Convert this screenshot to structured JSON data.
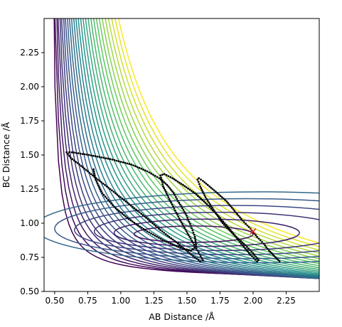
{
  "chart_data": {
    "type": "contour",
    "title": "",
    "xlabel": "AB Distance /Å",
    "ylabel": "BC Distance /Å",
    "xlim": [
      0.42,
      2.5
    ],
    "ylim": [
      0.5,
      2.5
    ],
    "xticks": [
      "0.50",
      "0.75",
      "1.00",
      "1.25",
      "1.50",
      "1.75",
      "2.00",
      "2.25"
    ],
    "yticks": [
      "0.50",
      "0.75",
      "1.00",
      "1.25",
      "1.50",
      "1.75",
      "2.00",
      "2.25"
    ],
    "xtick_values": [
      0.5,
      0.75,
      1.0,
      1.25,
      1.5,
      1.75,
      2.0,
      2.25
    ],
    "ytick_values": [
      0.5,
      0.75,
      1.0,
      1.25,
      1.5,
      1.75,
      2.0,
      2.25
    ],
    "colormap": [
      "#440154",
      "#3b528b",
      "#21918c",
      "#5ec962",
      "#fde725"
    ],
    "contour_levels": 28,
    "trajectory": {
      "color": "#000000",
      "points": [
        [
          2.2,
          0.72
        ],
        [
          2.16,
          0.76
        ],
        [
          2.12,
          0.8
        ],
        [
          2.08,
          0.85
        ],
        [
          2.03,
          0.9
        ],
        [
          1.98,
          0.96
        ],
        [
          1.92,
          1.02
        ],
        [
          1.86,
          1.09
        ],
        [
          1.8,
          1.16
        ],
        [
          1.73,
          1.22
        ],
        [
          1.67,
          1.27
        ],
        [
          1.62,
          1.31
        ],
        [
          1.59,
          1.33
        ],
        [
          1.58,
          1.32
        ],
        [
          1.6,
          1.27
        ],
        [
          1.64,
          1.19
        ],
        [
          1.7,
          1.1
        ],
        [
          1.77,
          1.0
        ],
        [
          1.85,
          0.92
        ],
        [
          1.93,
          0.85
        ],
        [
          2.0,
          0.78
        ],
        [
          2.04,
          0.73
        ],
        [
          2.03,
          0.72
        ],
        [
          1.98,
          0.77
        ],
        [
          1.91,
          0.85
        ],
        [
          1.83,
          0.95
        ],
        [
          1.74,
          1.05
        ],
        [
          1.65,
          1.14
        ],
        [
          1.56,
          1.22
        ],
        [
          1.47,
          1.28
        ],
        [
          1.39,
          1.33
        ],
        [
          1.33,
          1.36
        ],
        [
          1.3,
          1.35
        ],
        [
          1.32,
          1.27
        ],
        [
          1.38,
          1.15
        ],
        [
          1.45,
          1.02
        ],
        [
          1.52,
          0.9
        ],
        [
          1.58,
          0.8
        ],
        [
          1.62,
          0.73
        ],
        [
          1.6,
          0.72
        ],
        [
          1.52,
          0.78
        ],
        [
          1.42,
          0.86
        ],
        [
          1.3,
          0.95
        ],
        [
          1.18,
          1.05
        ],
        [
          1.05,
          1.15
        ],
        [
          0.92,
          1.25
        ],
        [
          0.8,
          1.34
        ],
        [
          0.7,
          1.42
        ],
        [
          0.62,
          1.48
        ],
        [
          0.59,
          1.52
        ],
        [
          0.63,
          1.52
        ],
        [
          0.76,
          1.5
        ],
        [
          0.92,
          1.47
        ],
        [
          1.08,
          1.43
        ],
        [
          1.2,
          1.38
        ],
        [
          1.29,
          1.33
        ],
        [
          1.35,
          1.28
        ],
        [
          1.4,
          1.22
        ],
        [
          1.44,
          1.15
        ],
        [
          1.49,
          1.07
        ],
        [
          1.53,
          0.98
        ],
        [
          1.56,
          0.9
        ],
        [
          1.57,
          0.83
        ],
        [
          1.53,
          0.8
        ],
        [
          1.45,
          0.82
        ],
        [
          1.33,
          0.87
        ],
        [
          1.2,
          0.94
        ],
        [
          1.06,
          1.03
        ],
        [
          0.95,
          1.12
        ],
        [
          0.86,
          1.22
        ],
        [
          0.81,
          1.32
        ],
        [
          0.79,
          1.41
        ]
      ]
    },
    "marker": {
      "x": 2.0,
      "y": 0.94,
      "symbol": "x",
      "color": "#e8261c"
    }
  }
}
